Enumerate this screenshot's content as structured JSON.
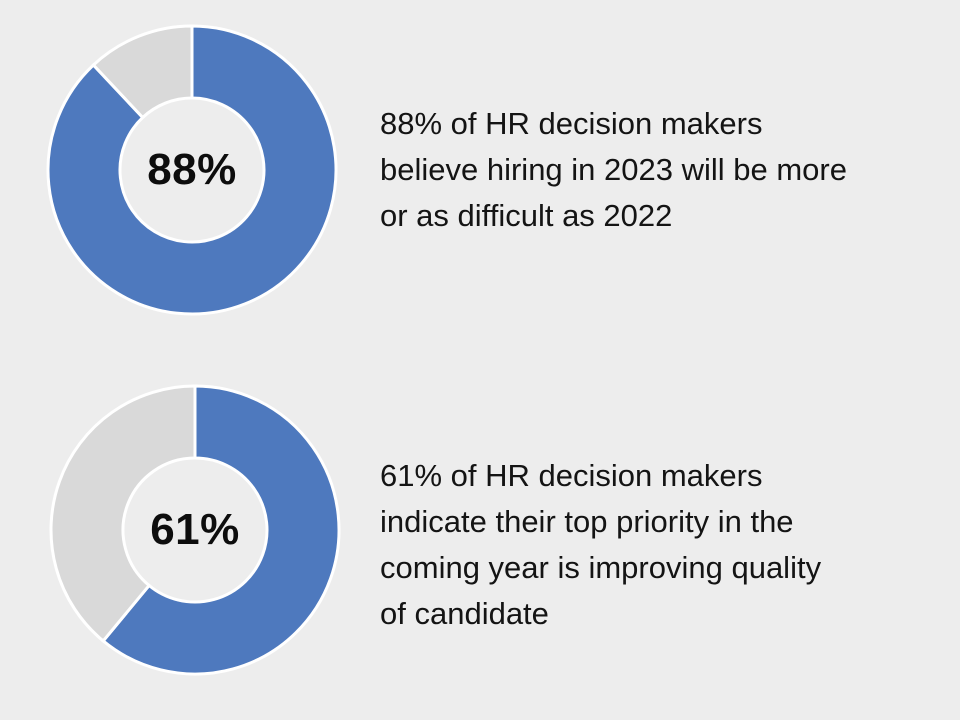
{
  "colors": {
    "background": "#EDEDED",
    "accent_blue": "#4E79BE",
    "remainder_gray": "#D9D9D9",
    "separator_white": "#FFFFFF",
    "text": "#141414",
    "center_label_text": "#0D0D0D"
  },
  "chart_data": [
    {
      "type": "pie",
      "donut": true,
      "start_angle": 0,
      "direction": "clockwise",
      "center_label": "88%",
      "slices": [
        {
          "label": "agree",
          "value": 88,
          "color": "#4E79BE"
        },
        {
          "label": "remainder",
          "value": 12,
          "color": "#D9D9D9"
        }
      ],
      "caption": "88% of HR decision makers\nbelieve hiring in 2023 will be more\nor as difficult as 2022"
    },
    {
      "type": "pie",
      "donut": true,
      "start_angle": 0,
      "direction": "clockwise",
      "center_label": "61%",
      "slices": [
        {
          "label": "agree",
          "value": 61,
          "color": "#4E79BE"
        },
        {
          "label": "remainder",
          "value": 39,
          "color": "#D9D9D9"
        }
      ],
      "caption": "61% of HR decision makers\nindicate their top priority in the\ncoming year is improving quality\nof candidate"
    }
  ]
}
